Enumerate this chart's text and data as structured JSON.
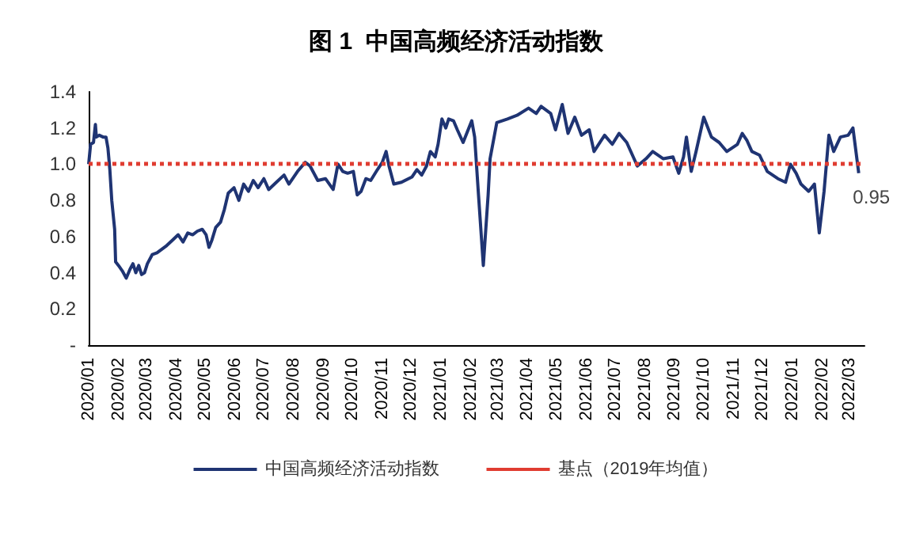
{
  "chart_data": {
    "type": "line",
    "title": "图 1  中国高频经济活动指数",
    "x": [
      "2020-01-01",
      "2020-01-03",
      "2020-01-06",
      "2020-01-08",
      "2020-01-09",
      "2020-01-12",
      "2020-01-16",
      "2020-01-19",
      "2020-01-21",
      "2020-01-23",
      "2020-01-25",
      "2020-01-28",
      "2020-01-29",
      "2020-02-01",
      "2020-02-05",
      "2020-02-09",
      "2020-02-13",
      "2020-02-16",
      "2020-02-19",
      "2020-02-22",
      "2020-02-25",
      "2020-02-28",
      "2020-03-02",
      "2020-03-07",
      "2020-03-12",
      "2020-03-17",
      "2020-03-22",
      "2020-03-28",
      "2020-04-03",
      "2020-04-08",
      "2020-04-13",
      "2020-04-18",
      "2020-04-23",
      "2020-04-28",
      "2020-05-02",
      "2020-05-05",
      "2020-05-08",
      "2020-05-12",
      "2020-05-17",
      "2020-05-21",
      "2020-05-25",
      "2020-05-31",
      "2020-06-05",
      "2020-06-10",
      "2020-06-15",
      "2020-06-20",
      "2020-06-25",
      "2020-07-01",
      "2020-07-06",
      "2020-07-14",
      "2020-07-22",
      "2020-07-27",
      "2020-08-05",
      "2020-08-13",
      "2020-08-18",
      "2020-08-26",
      "2020-09-03",
      "2020-09-11",
      "2020-09-16",
      "2020-09-21",
      "2020-09-26",
      "2020-10-02",
      "2020-10-06",
      "2020-10-10",
      "2020-10-15",
      "2020-10-20",
      "2020-10-27",
      "2020-11-01",
      "2020-11-05",
      "2020-11-08",
      "2020-11-13",
      "2020-11-21",
      "2020-12-02",
      "2020-12-07",
      "2020-12-12",
      "2020-12-17",
      "2020-12-21",
      "2020-12-26",
      "2020-12-29",
      "2021-01-02",
      "2021-01-06",
      "2021-01-09",
      "2021-01-14",
      "2021-01-18",
      "2021-01-24",
      "2021-02-02",
      "2021-02-05",
      "2021-02-09",
      "2021-02-14",
      "2021-02-19",
      "2021-02-21",
      "2021-02-28",
      "2021-03-11",
      "2021-03-21",
      "2021-04-02",
      "2021-04-10",
      "2021-04-15",
      "2021-04-25",
      "2021-04-30",
      "2021-05-07",
      "2021-05-13",
      "2021-05-20",
      "2021-05-27",
      "2021-06-04",
      "2021-06-09",
      "2021-06-20",
      "2021-06-28",
      "2021-07-05",
      "2021-07-13",
      "2021-07-24",
      "2021-08-02",
      "2021-08-09",
      "2021-08-20",
      "2021-08-30",
      "2021-09-05",
      "2021-09-10",
      "2021-09-13",
      "2021-09-18",
      "2021-09-23",
      "2021-10-01",
      "2021-10-09",
      "2021-10-17",
      "2021-10-25",
      "2021-11-05",
      "2021-11-10",
      "2021-11-15",
      "2021-11-20",
      "2021-11-28",
      "2021-12-06",
      "2021-12-17",
      "2021-12-25",
      "2021-12-30",
      "2022-01-05",
      "2022-01-10",
      "2022-01-18",
      "2022-01-24",
      "2022-01-29",
      "2022-02-03",
      "2022-02-08",
      "2022-02-13",
      "2022-02-20",
      "2022-02-28",
      "2022-03-05",
      "2022-03-11"
    ],
    "series": [
      {
        "name": "中国高频经济活动指数",
        "color": "#1f3473",
        "values": [
          1.0,
          1.11,
          1.12,
          1.22,
          1.15,
          1.16,
          1.15,
          1.15,
          1.09,
          0.97,
          0.8,
          0.64,
          0.46,
          0.44,
          0.41,
          0.37,
          0.42,
          0.45,
          0.4,
          0.44,
          0.39,
          0.4,
          0.45,
          0.5,
          0.51,
          0.53,
          0.55,
          0.58,
          0.61,
          0.57,
          0.62,
          0.61,
          0.63,
          0.64,
          0.61,
          0.54,
          0.58,
          0.65,
          0.68,
          0.75,
          0.84,
          0.87,
          0.8,
          0.89,
          0.85,
          0.91,
          0.87,
          0.92,
          0.86,
          0.9,
          0.94,
          0.89,
          0.96,
          1.01,
          0.99,
          0.91,
          0.92,
          0.86,
          1.0,
          0.96,
          0.95,
          0.96,
          0.83,
          0.85,
          0.92,
          0.91,
          0.97,
          1.01,
          1.07,
          0.99,
          0.89,
          0.9,
          0.93,
          0.97,
          0.94,
          0.99,
          1.07,
          1.04,
          1.11,
          1.25,
          1.2,
          1.25,
          1.24,
          1.19,
          1.12,
          1.24,
          1.15,
          0.83,
          0.44,
          0.83,
          1.03,
          1.23,
          1.25,
          1.27,
          1.31,
          1.28,
          1.32,
          1.28,
          1.19,
          1.33,
          1.17,
          1.26,
          1.16,
          1.19,
          1.07,
          1.16,
          1.11,
          1.17,
          1.12,
          0.99,
          1.03,
          1.07,
          1.03,
          1.04,
          0.95,
          1.04,
          1.15,
          0.96,
          1.07,
          1.26,
          1.15,
          1.12,
          1.07,
          1.11,
          1.17,
          1.13,
          1.07,
          1.05,
          0.96,
          0.92,
          0.9,
          1.0,
          0.95,
          0.89,
          0.85,
          0.89,
          0.62,
          0.85,
          1.16,
          1.07,
          1.15,
          1.16,
          1.2,
          0.95
        ],
        "value_labels": [
          null,
          null,
          null,
          null,
          null,
          null,
          null,
          null,
          null,
          null,
          null,
          null,
          null,
          null,
          null,
          null,
          null,
          null,
          null,
          null,
          null,
          null,
          null,
          null,
          null,
          null,
          null,
          null,
          null,
          null,
          null,
          null,
          null,
          null,
          null,
          null,
          null,
          null,
          null,
          null,
          null,
          null,
          null,
          null,
          null,
          null,
          null,
          null,
          null,
          null,
          null,
          null,
          null,
          null,
          null,
          null,
          null,
          null,
          null,
          null,
          null,
          null,
          null,
          null,
          null,
          null,
          null,
          null,
          null,
          null,
          null,
          null,
          null,
          null,
          null,
          null,
          null,
          null,
          null,
          null,
          null,
          null,
          null,
          null,
          null,
          null,
          null,
          null,
          null,
          null,
          null,
          null,
          null,
          null,
          null,
          null,
          null,
          null,
          null,
          null,
          null,
          null,
          null,
          null,
          null,
          null,
          null,
          null,
          null,
          null,
          null,
          null,
          null,
          null,
          null,
          null,
          null,
          null,
          null,
          null,
          null,
          null,
          null,
          null,
          null,
          null,
          null,
          null,
          null,
          null,
          null,
          null,
          null,
          null,
          null,
          null,
          null,
          null,
          null,
          null,
          null,
          null,
          null,
          "0.95"
        ]
      }
    ],
    "xlim": [
      "2020-01-01",
      "2022-03-17"
    ],
    "xticks": [
      {
        "value": "2020-01-01",
        "label": "2020/01"
      },
      {
        "value": "2020-02-01",
        "label": "2020/02"
      },
      {
        "value": "2020-03-01",
        "label": "2020/03"
      },
      {
        "value": "2020-04-01",
        "label": "2020/04"
      },
      {
        "value": "2020-05-01",
        "label": "2020/05"
      },
      {
        "value": "2020-06-01",
        "label": "2020/06"
      },
      {
        "value": "2020-07-01",
        "label": "2020/07"
      },
      {
        "value": "2020-08-01",
        "label": "2020/08"
      },
      {
        "value": "2020-09-01",
        "label": "2020/09"
      },
      {
        "value": "2020-10-01",
        "label": "2020/10"
      },
      {
        "value": "2020-11-01",
        "label": "2020/11"
      },
      {
        "value": "2020-12-01",
        "label": "2020/12"
      },
      {
        "value": "2021-01-01",
        "label": "2021/01"
      },
      {
        "value": "2021-02-01",
        "label": "2021/02"
      },
      {
        "value": "2021-03-01",
        "label": "2021/03"
      },
      {
        "value": "2021-04-01",
        "label": "2021/04"
      },
      {
        "value": "2021-05-01",
        "label": "2021/05"
      },
      {
        "value": "2021-06-01",
        "label": "2021/06"
      },
      {
        "value": "2021-07-01",
        "label": "2021/07"
      },
      {
        "value": "2021-08-01",
        "label": "2021/08"
      },
      {
        "value": "2021-09-01",
        "label": "2021/09"
      },
      {
        "value": "2021-10-01",
        "label": "2021/10"
      },
      {
        "value": "2021-11-01",
        "label": "2021/11"
      },
      {
        "value": "2021-12-01",
        "label": "2021/12"
      },
      {
        "value": "2022-01-01",
        "label": "2022/01"
      },
      {
        "value": "2022-02-01",
        "label": "2022/02"
      },
      {
        "value": "2022-03-01",
        "label": "2022/03"
      }
    ],
    "ylim": [
      0,
      1.4
    ],
    "yticks": [
      {
        "value": 0,
        "label": "-"
      },
      0.2,
      0.4,
      0.6,
      0.8,
      {
        "value": 1,
        "label": "1.0"
      },
      1.2,
      1.4
    ],
    "ref_lines": [
      {
        "axis": "y",
        "value": 1.0,
        "label": "基点（2019年均值）",
        "color": "#e03c31",
        "line_style": "dotted"
      }
    ],
    "legend": "bottom",
    "grid": false,
    "marker": "none",
    "line_style": "solid"
  }
}
